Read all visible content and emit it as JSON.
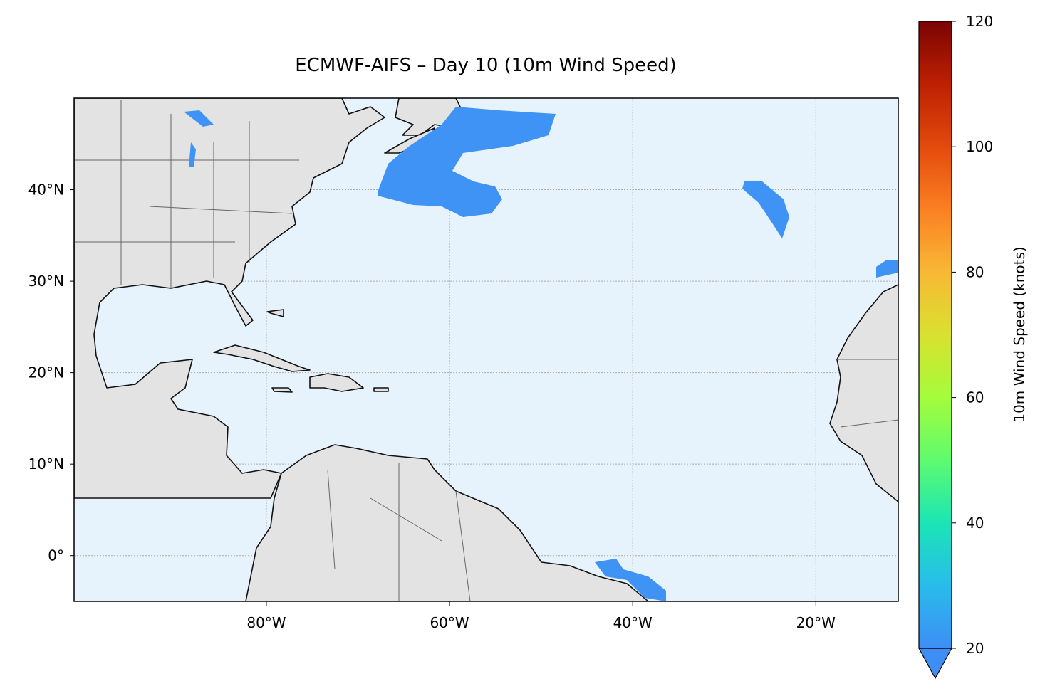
{
  "chart_data": {
    "type": "map",
    "title": "ECMWF-AIFS – Day 10 (10m Wind Speed)",
    "xlim": [
      -101,
      -11
    ],
    "ylim": [
      -5,
      50
    ],
    "xticks": [
      {
        "value": -80,
        "label": "80°W"
      },
      {
        "value": -60,
        "label": "60°W"
      },
      {
        "value": -40,
        "label": "40°W"
      },
      {
        "value": -20,
        "label": "20°W"
      }
    ],
    "yticks": [
      {
        "value": 0,
        "label": "0°"
      },
      {
        "value": 10,
        "label": "10°N"
      },
      {
        "value": 20,
        "label": "20°N"
      },
      {
        "value": 30,
        "label": "30°N"
      },
      {
        "value": 40,
        "label": "40°N"
      }
    ],
    "grid": true,
    "ocean_color": "#e6f2fc",
    "land_color": "#e3e3e3",
    "colorbar": {
      "label": "10m Wind Speed (knots)",
      "ylim": [
        20,
        120
      ],
      "yticks": [
        20,
        40,
        60,
        80,
        100,
        120
      ],
      "extend": "min",
      "colors": [
        "#3e8ef5",
        "#28bceb",
        "#1be5b5",
        "#5efb6e",
        "#a4fc3b",
        "#d9e12f",
        "#f8b835",
        "#fb8022",
        "#e24a0c",
        "#bd2002",
        "#7a0403"
      ]
    }
  }
}
